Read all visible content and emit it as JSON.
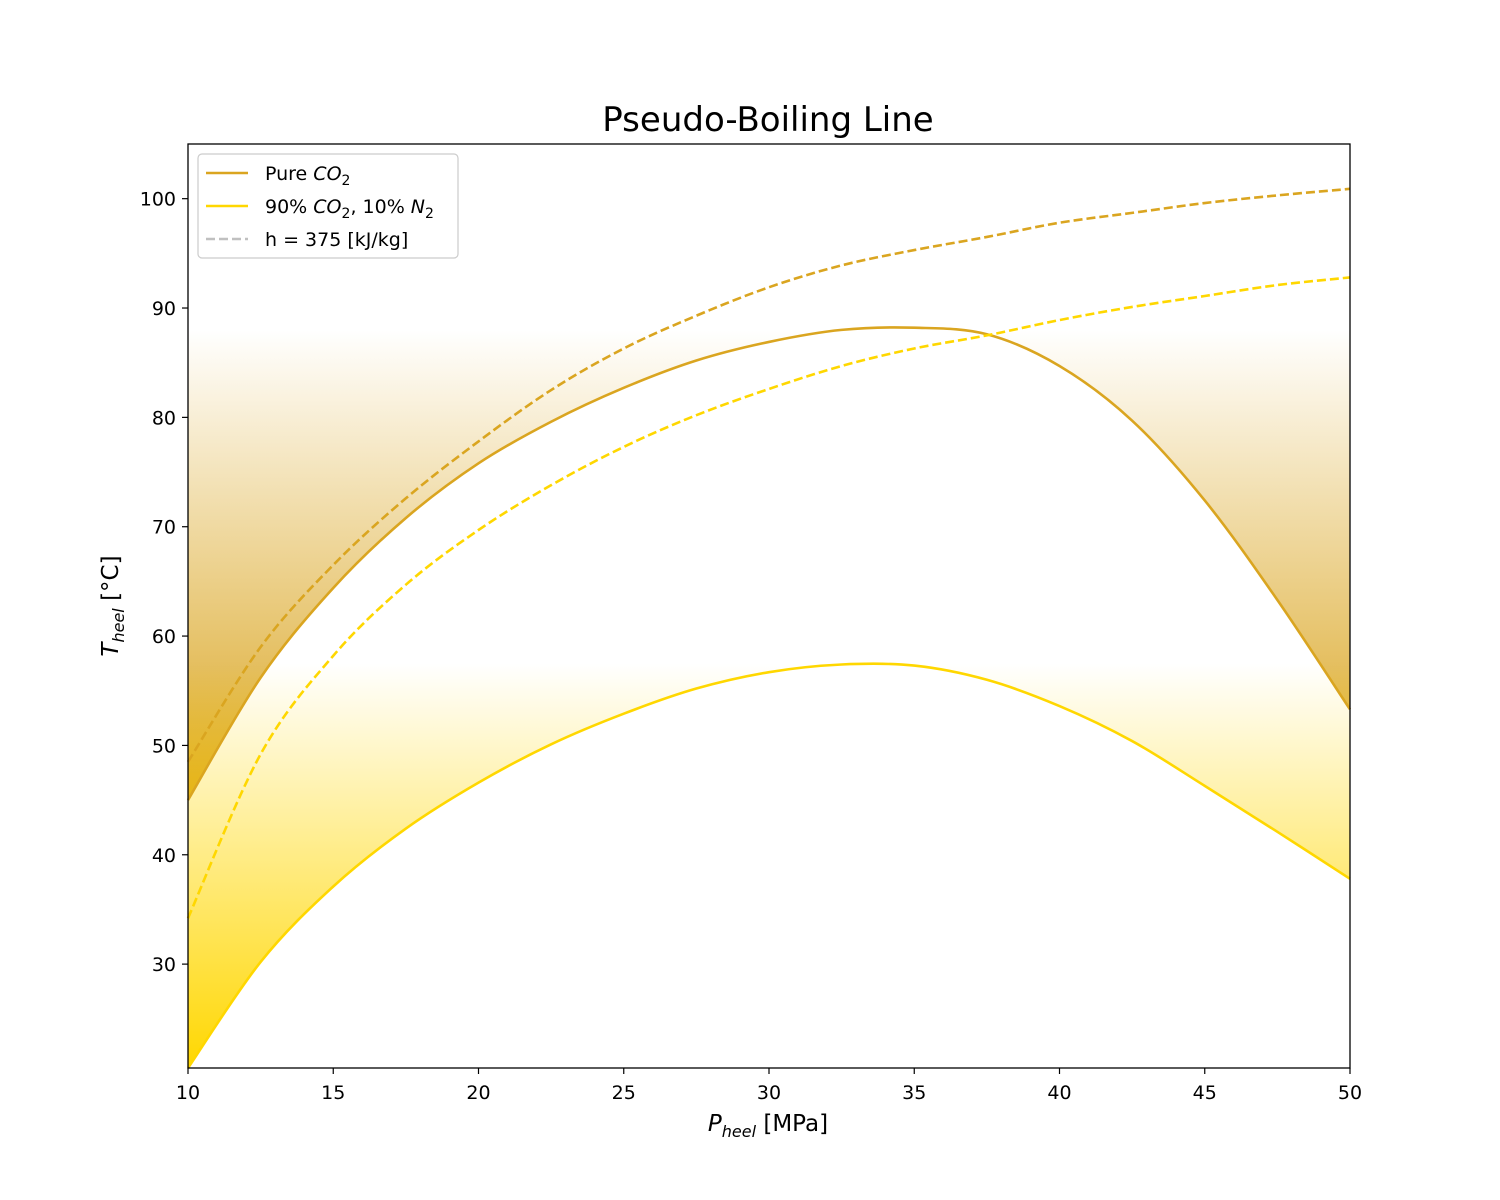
{
  "chart_data": {
    "type": "line",
    "title": "Pseudo-Boiling Line",
    "xlabel": {
      "main": "P",
      "sub": "heel",
      "unit": " [MPa]"
    },
    "ylabel": {
      "main": "T",
      "sub": "heel",
      "unit": " [°C]"
    },
    "xlim": [
      10,
      50
    ],
    "ylim": [
      20.5,
      105
    ],
    "xticks": [
      10,
      15,
      20,
      25,
      30,
      35,
      40,
      45,
      50
    ],
    "yticks": [
      30,
      40,
      50,
      60,
      70,
      80,
      90,
      100
    ],
    "grid": false,
    "legend_position": "top-left",
    "x": [
      10,
      12.5,
      15,
      17.5,
      20,
      22.5,
      25,
      27.5,
      30,
      32.5,
      35,
      37.5,
      40,
      42.5,
      45,
      47.5,
      50
    ],
    "series": [
      {
        "name": "Pure CO2",
        "legend": {
          "prefix": "Pure ",
          "chem": "CO",
          "sub": "2",
          "suffix": ""
        },
        "style": "solid",
        "color": "#DAA520",
        "fill": true,
        "fill_top": 88,
        "values": [
          45.0,
          56.2,
          64.4,
          70.8,
          75.8,
          79.6,
          82.7,
          85.2,
          86.9,
          88.0,
          88.2,
          87.6,
          84.7,
          79.7,
          72.4,
          63.3,
          53.3
        ]
      },
      {
        "name": "90% CO2, 10% N2",
        "legend": {
          "prefix": "90% ",
          "chem": "CO",
          "sub": "2",
          "suffix": ", 10% ",
          "chem2": "N",
          "sub2": "2"
        },
        "style": "solid",
        "color": "#FFD700",
        "fill": true,
        "fill_top": 57.5,
        "values": [
          20.5,
          30.2,
          37.1,
          42.4,
          46.6,
          50.1,
          52.9,
          55.2,
          56.7,
          57.4,
          57.3,
          56.0,
          53.6,
          50.4,
          46.3,
          42.1,
          37.8
        ]
      },
      {
        "name": "h = 375 [kJ/kg] (Pure CO2)",
        "style": "dashed",
        "color": "#DAA520",
        "values": [
          48.5,
          59.0,
          66.5,
          72.6,
          77.8,
          82.5,
          86.3,
          89.3,
          91.9,
          93.9,
          95.3,
          96.5,
          97.8,
          98.7,
          99.6,
          100.3,
          100.9
        ]
      },
      {
        "name": "h = 375 [kJ/kg] (90% CO2, 10% N2)",
        "style": "dashed",
        "color": "#FFD700",
        "values": [
          34.2,
          49.2,
          58.2,
          64.7,
          69.7,
          73.8,
          77.3,
          80.2,
          82.6,
          84.7,
          86.3,
          87.5,
          88.9,
          90.1,
          91.1,
          92.1,
          92.8
        ]
      }
    ],
    "legend_entries": [
      {
        "label": "Pure CO2",
        "color": "#DAA520",
        "style": "solid"
      },
      {
        "label": "90% CO2, 10% N2",
        "color": "#FFD700",
        "style": "solid"
      },
      {
        "label": "h = 375 [kJ/kg]",
        "color": "#C0C0C0",
        "style": "dashed"
      }
    ]
  }
}
